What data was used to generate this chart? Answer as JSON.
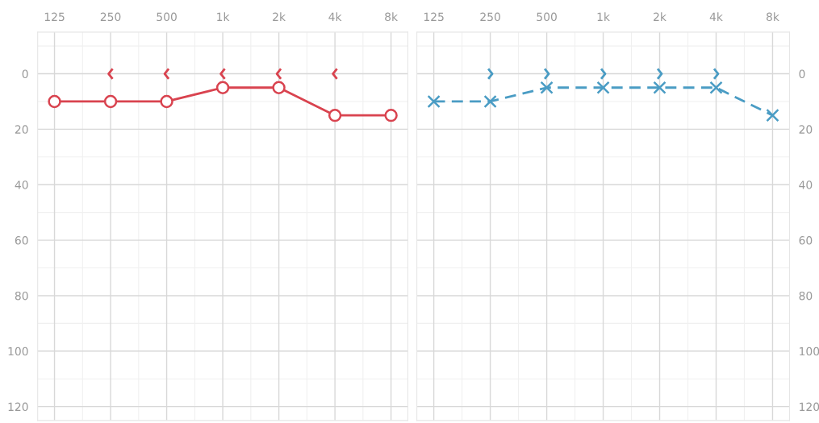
{
  "chart_data": [
    {
      "type": "line",
      "categories": [
        "125",
        "250",
        "500",
        "1k",
        "2k",
        "4k",
        "8k"
      ],
      "ylim": [
        125,
        -15
      ],
      "yticks": [
        0,
        20,
        40,
        60,
        80,
        100,
        120
      ],
      "grid": true,
      "series": [
        {
          "color": "#d9434f",
          "marker": "circle",
          "line_style": "solid",
          "values": [
            10,
            10,
            10,
            5,
            5,
            15,
            15
          ]
        },
        {
          "type": "scatter",
          "color": "#d9434f",
          "values": [
            null,
            0,
            0,
            0,
            0,
            0,
            null
          ]
        }
      ]
    },
    {
      "type": "line",
      "categories": [
        "125",
        "250",
        "500",
        "1k",
        "2k",
        "4k",
        "8k"
      ],
      "ylim": [
        125,
        -15
      ],
      "yticks": [
        0,
        20,
        40,
        60,
        80,
        100,
        120
      ],
      "grid": true,
      "series": [
        {
          "color": "#4a9cc4",
          "marker": "cross",
          "line_style": "dashed",
          "values": [
            10,
            10,
            5,
            5,
            5,
            5,
            15
          ]
        },
        {
          "type": "scatter",
          "color": "#4a9cc4",
          "values": [
            null,
            0,
            0,
            0,
            0,
            0,
            null
          ]
        }
      ]
    }
  ]
}
